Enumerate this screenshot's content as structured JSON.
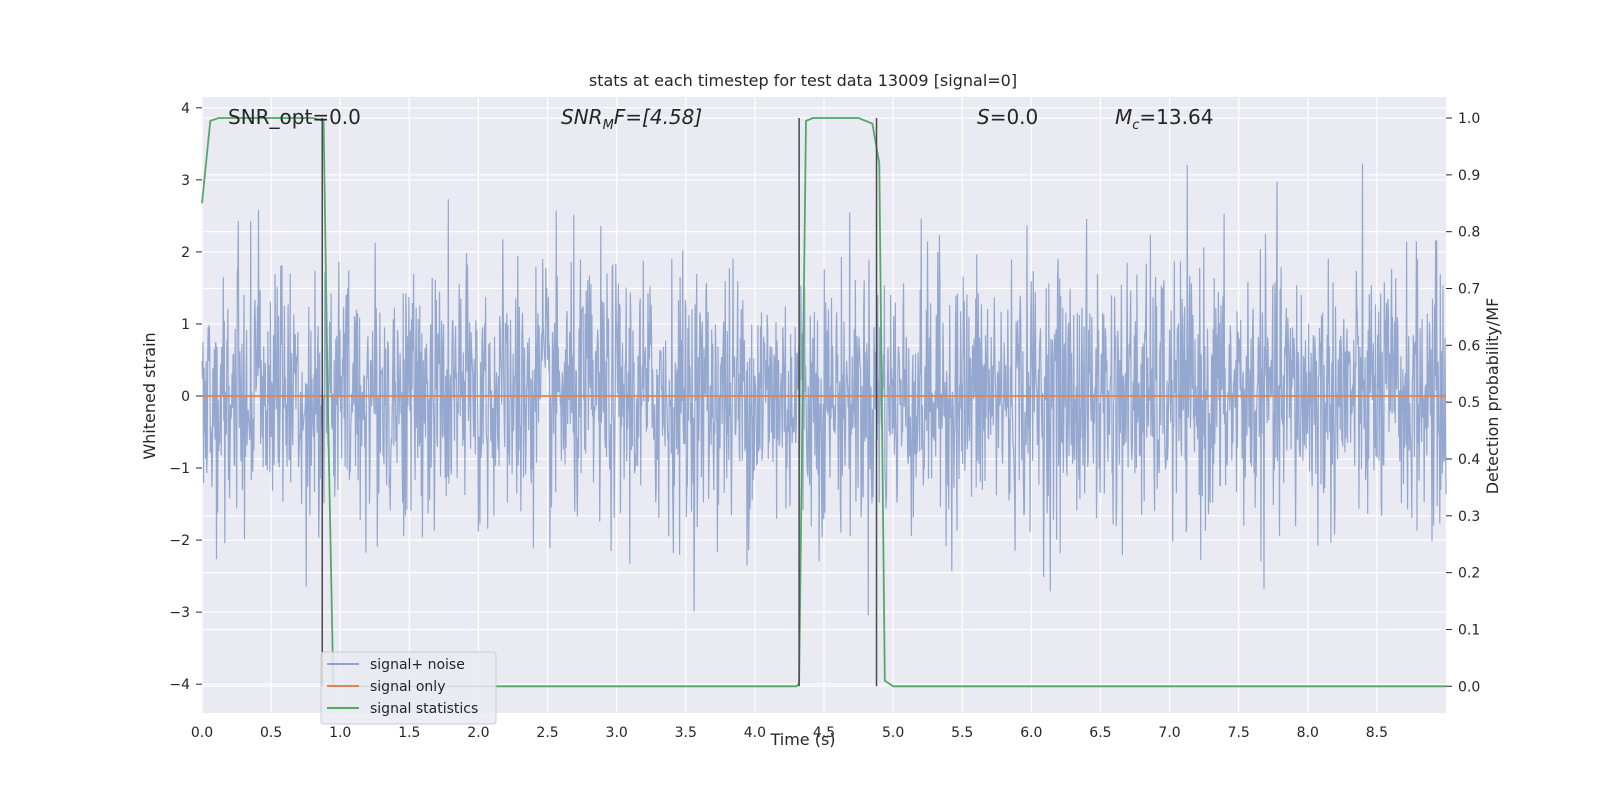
{
  "chart_data": {
    "type": "line",
    "title": "stats at each timestep for test data 13009 [signal=0]",
    "xlabel": "Time (s)",
    "ylabel": "Whitened strain",
    "y2label": "Detection probability/MF",
    "xlim": [
      0.0,
      9.0
    ],
    "ylim": [
      -4.4,
      4.15
    ],
    "y2lim": [
      -0.047,
      1.037
    ],
    "x_ticks": [
      "0.0",
      "0.5",
      "1.0",
      "1.5",
      "2.0",
      "2.5",
      "3.0",
      "3.5",
      "4.0",
      "4.5",
      "5.0",
      "5.5",
      "6.0",
      "6.5",
      "7.0",
      "7.5",
      "8.0",
      "8.5"
    ],
    "y_ticks": [
      "4",
      "3",
      "2",
      "1",
      "0",
      "−1",
      "−2",
      "−3",
      "−4"
    ],
    "y2_ticks": [
      "1.0",
      "0.9",
      "0.8",
      "0.7",
      "0.6",
      "0.5",
      "0.4",
      "0.3",
      "0.2",
      "0.1",
      "0.0"
    ],
    "grid": true,
    "legend_position": "lower-left",
    "annotations": {
      "snr_opt": "SNR_opt=0.0",
      "snr_mf_main": "SNR",
      "snr_mf_sub": "M",
      "snr_mf_rest": "F=[4.58]",
      "s_sym": "S",
      "s_val": "=0.0",
      "mc_main": "M",
      "mc_sub": "c",
      "mc_val": "=13.64"
    },
    "series": [
      {
        "name": "signal+ noise",
        "color": "#8fa3cc",
        "axis": "left",
        "noise_sigma": 0.9,
        "x_range": [
          0.0,
          9.0
        ]
      },
      {
        "name": "signal only",
        "color": "#dd8452",
        "axis": "left",
        "x": [
          0.0,
          9.0
        ],
        "y": [
          0.0,
          0.0
        ]
      },
      {
        "name": "signal statistics",
        "color": "#55a868",
        "axis": "right",
        "x": [
          0.0,
          0.06,
          0.12,
          0.2,
          0.5,
          0.8,
          0.88,
          0.91,
          0.95,
          1.0,
          2.0,
          3.0,
          4.0,
          4.3,
          4.32,
          4.37,
          4.42,
          4.6,
          4.75,
          4.85,
          4.9,
          4.94,
          5.0,
          6.0,
          7.0,
          8.0,
          9.0
        ],
        "y": [
          0.85,
          0.995,
          1.0,
          1.0,
          1.0,
          1.0,
          0.995,
          0.5,
          0.0,
          0.0,
          0.0,
          0.0,
          0.0,
          0.0,
          0.005,
          0.995,
          1.0,
          1.0,
          1.0,
          0.99,
          0.92,
          0.01,
          0.0,
          0.0,
          0.0,
          0.0,
          0.0
        ]
      }
    ],
    "vlines": [
      {
        "x": 0.87,
        "y2_range": [
          0.0,
          1.0
        ]
      },
      {
        "x": 4.32,
        "y2_range": [
          0.0,
          1.0
        ]
      },
      {
        "x": 4.88,
        "y2_range": [
          0.0,
          1.0
        ]
      }
    ],
    "colors": {
      "plot_bg": "#eaeaf2",
      "grid": "#ffffff",
      "vline": "#4a4a4a"
    }
  }
}
